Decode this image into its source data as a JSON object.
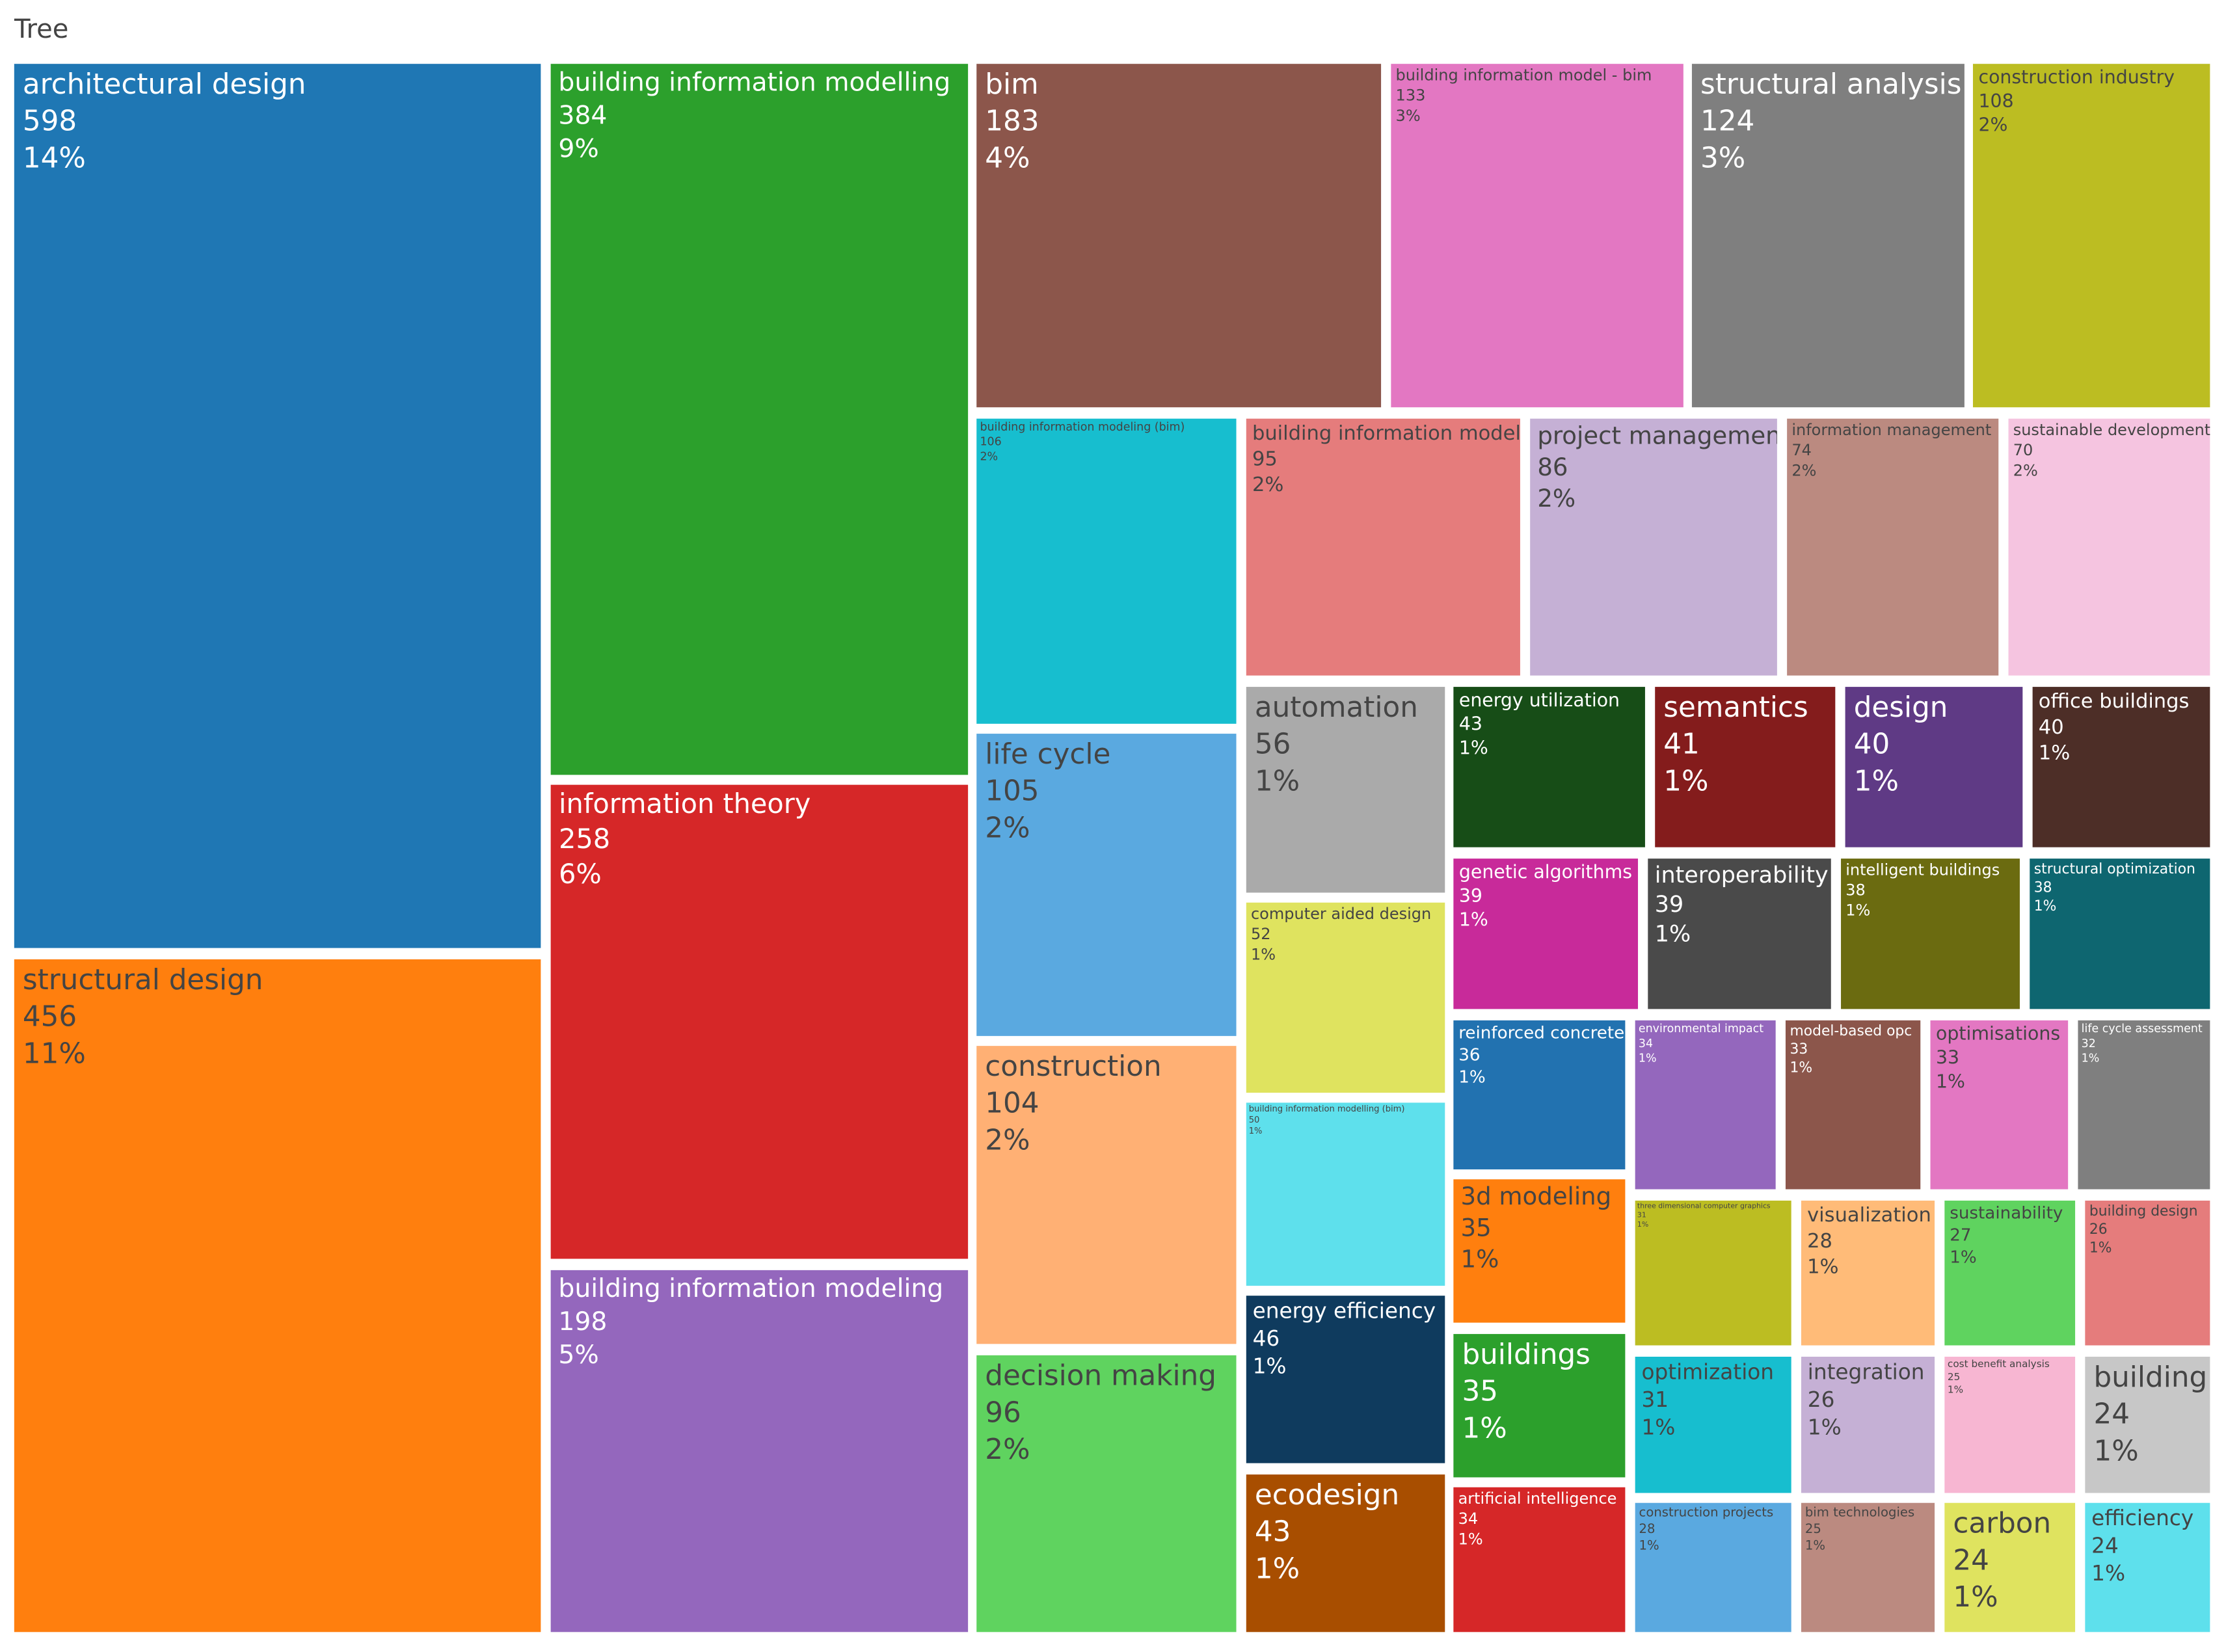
{
  "chart_data": {
    "type": "treemap",
    "title": "Tree",
    "categories": [
      "architectural design",
      "structural design",
      "building information modelling",
      "information theory",
      "building information modeling",
      "bim",
      "building information model - bim",
      "structural analysis",
      "construction industry",
      "building information modeling (bim)",
      "life cycle",
      "construction",
      "decision making",
      "building information model",
      "project management",
      "information management",
      "sustainable development",
      "automation",
      "computer aided design",
      "building information modelling (bim)",
      "energy efficiency",
      "ecodesign",
      "energy utilization",
      "semantics",
      "design",
      "office buildings",
      "genetic algorithms",
      "interoperability",
      "intelligent buildings",
      "structural optimization",
      "reinforced concrete",
      "environmental impact",
      "model-based opc",
      "optimisations",
      "life cycle assessment",
      "3d modeling",
      "buildings",
      "artificial intelligence",
      "three dimensional computer graphics",
      "visualization",
      "sustainability",
      "building design",
      "optimization",
      "integration",
      "cost benefit analysis",
      "building",
      "construction projects",
      "bim technologies",
      "carbon",
      "efficiency"
    ],
    "values": [
      598,
      456,
      384,
      258,
      198,
      183,
      133,
      124,
      108,
      106,
      105,
      104,
      96,
      95,
      86,
      74,
      70,
      56,
      52,
      50,
      46,
      43,
      43,
      41,
      40,
      40,
      39,
      39,
      38,
      38,
      36,
      34,
      33,
      33,
      32,
      35,
      35,
      34,
      31,
      28,
      27,
      26,
      31,
      26,
      25,
      24,
      28,
      25,
      24,
      24
    ],
    "percent_labels": [
      "14%",
      "11%",
      "9%",
      "6%",
      "5%",
      "4%",
      "3%",
      "3%",
      "2%",
      "2%",
      "2%",
      "2%",
      "2%",
      "2%",
      "2%",
      "2%",
      "2%",
      "1%",
      "1%",
      "1%",
      "1%",
      "1%",
      "1%",
      "1%",
      "1%",
      "1%",
      "1%",
      "1%",
      "1%",
      "1%",
      "1%",
      "1%",
      "1%",
      "1%",
      "1%",
      "1%",
      "1%",
      "1%",
      "1%",
      "1%",
      "1%",
      "1%",
      "1%",
      "1%",
      "1%",
      "1%",
      "1%",
      "1%",
      "1%",
      "1%"
    ],
    "colors": [
      "#1f77b4",
      "#ff7f0e",
      "#2ca02c",
      "#d62728",
      "#9467bd",
      "#8c564b",
      "#e377c2",
      "#7f7f7f",
      "#bcbd22",
      "#17becf",
      "#5aa9e0",
      "#ffb074",
      "#5fd35f",
      "#e57c7c",
      "#c5b0d5",
      "#bb8a80",
      "#f5c4e0",
      "#aaaaaa",
      "#dfe35f",
      "#5ee0ec",
      "#0f3b5e",
      "#a84e00",
      "#174d17",
      "#841c1c",
      "#5f3a85",
      "#4d2e27",
      "#c82a9a",
      "#4a4a4a",
      "#6b6b10",
      "#0e6670",
      "#2272b0",
      "#9467bd",
      "#8c564b",
      "#e377c2",
      "#7f7f7f",
      "#ff7f0e",
      "#2ca02c",
      "#d62728",
      "#bcbd22",
      "#ffbb78",
      "#5fd35f",
      "#e57c7c",
      "#17becf",
      "#c5b0d5",
      "#f7b6d2",
      "#c7c7c7",
      "#5aa9e0",
      "#bb8a80",
      "#dfe35f",
      "#5ee0ec"
    ]
  }
}
